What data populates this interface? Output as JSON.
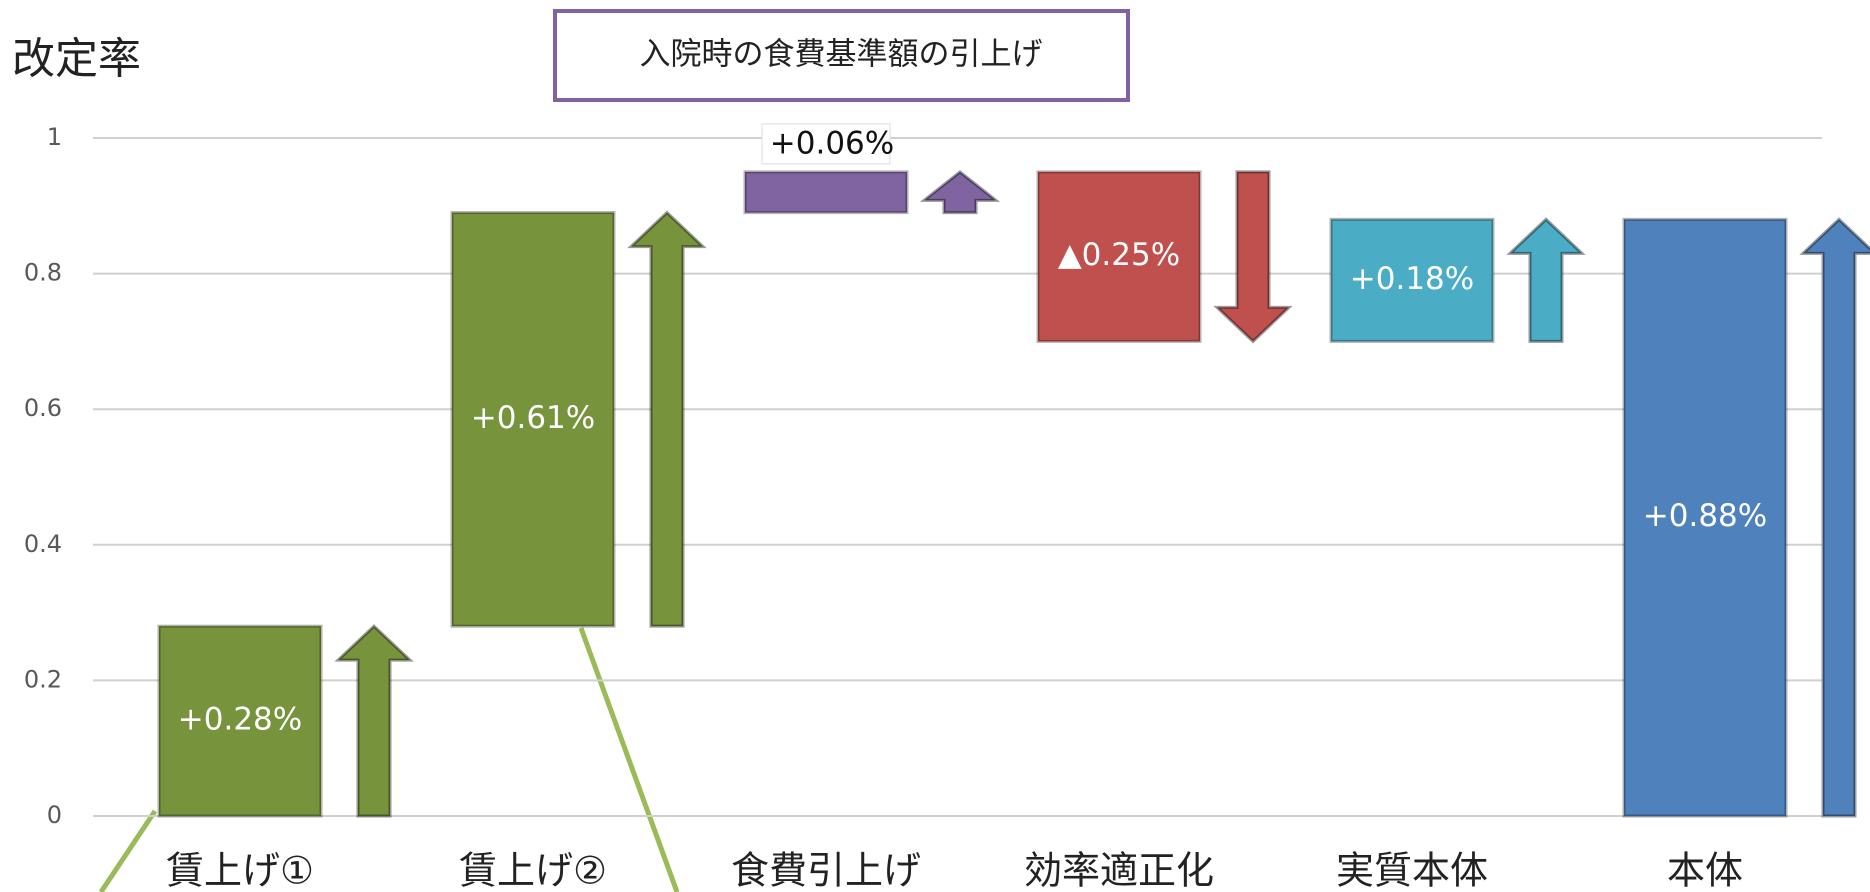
{
  "chart_data": {
    "type": "waterfall",
    "title": "改定率",
    "annotation": "入院時の食費基準額の引上げ",
    "categories": [
      "賃上げ①",
      "賃上げ②",
      "食費引上げ",
      "効率適正化",
      "実質本体",
      "本体"
    ],
    "values": [
      0.28,
      0.61,
      0.06,
      -0.25,
      0.18,
      0.88
    ],
    "value_labels": [
      "+0.28%",
      "+0.61%",
      "+0.06%",
      "▲0.25%",
      "+0.18%",
      "+0.88%"
    ],
    "colors": [
      "#77933c",
      "#77933c",
      "#8064a2",
      "#c0504d",
      "#4bacc6",
      "#4f81bd"
    ],
    "last_is_total": true,
    "ylim": [
      0,
      1
    ],
    "yticks": [
      0,
      0.2,
      0.4,
      0.6,
      0.8,
      1
    ],
    "grid": true
  }
}
